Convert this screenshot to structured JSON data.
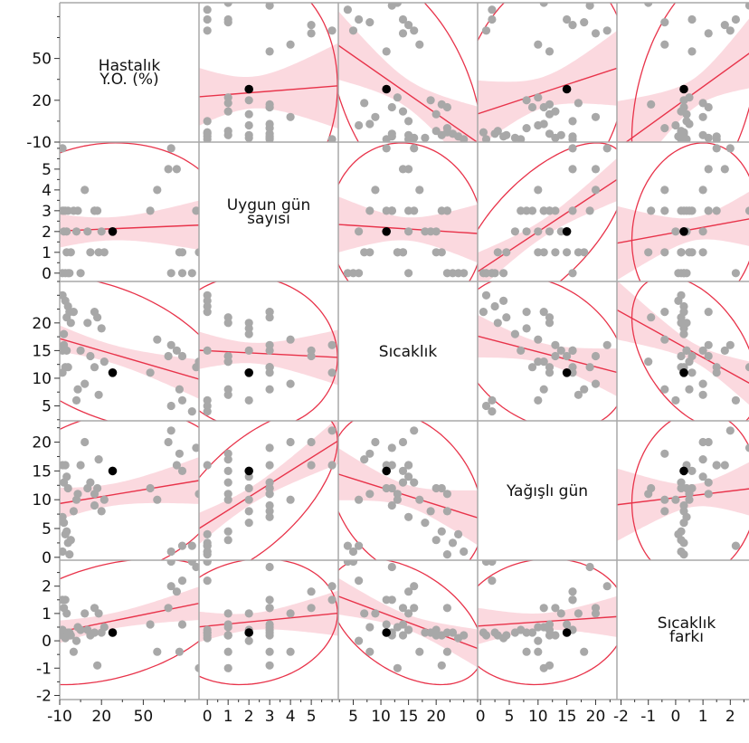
{
  "chart_data": {
    "type": "scatter_matrix",
    "variables": [
      {
        "key": "hastalik",
        "label_lines": [
          "Hastalık",
          "Y.O. (%)"
        ],
        "range": [
          -10,
          90
        ],
        "ticks": [
          -10,
          20,
          50
        ]
      },
      {
        "key": "uygun_gun",
        "label_lines": [
          "Uygun gün",
          "sayısı"
        ],
        "range": [
          -0.4,
          6.3
        ],
        "ticks": [
          0,
          1,
          2,
          3,
          4,
          5
        ]
      },
      {
        "key": "sicaklik",
        "label_lines": [
          "Sıcaklık"
        ],
        "range": [
          2.3,
          27.5
        ],
        "ticks": [
          5,
          10,
          15,
          20
        ]
      },
      {
        "key": "yagisli_gun",
        "label_lines": [
          "Yağışlı gün"
        ],
        "range": [
          -0.5,
          23.7
        ],
        "ticks": [
          0,
          5,
          10,
          15,
          20
        ]
      },
      {
        "key": "sicaklik_farki",
        "label_lines": [
          "Sıcaklık",
          "farkı"
        ],
        "range": [
          -2.15,
          2.95
        ],
        "ticks": [
          -2,
          -1,
          0,
          1,
          2
        ]
      }
    ],
    "observations": [
      [
        -8,
        0,
        25,
        1.0,
        0.2
      ],
      [
        -6,
        0,
        24,
        4.0,
        0.1
      ],
      [
        -4,
        0,
        23,
        2.5,
        0.3
      ],
      [
        -3,
        0,
        22,
        0.5,
        0.3
      ],
      [
        -5,
        1,
        21,
        4.5,
        0.2
      ],
      [
        -2,
        1,
        20,
        3.0,
        0.2
      ],
      [
        -7,
        2,
        18,
        6.0,
        0.3
      ],
      [
        -8,
        3,
        15,
        7.0,
        0.4
      ],
      [
        -4,
        3,
        12,
        12.0,
        0.2
      ],
      [
        0,
        3,
        22,
        8.0,
        -0.4
      ],
      [
        2,
        2,
        6,
        10.0,
        0.0
      ],
      [
        3,
        3,
        8,
        11.0,
        0.5
      ],
      [
        -8,
        6,
        11,
        16.0,
        1.5
      ],
      [
        -7,
        3,
        16,
        13.0,
        1.2
      ],
      [
        -6,
        3,
        12,
        16.0,
        1.5
      ],
      [
        -5,
        2,
        15,
        14.0,
        1.0
      ],
      [
        8,
        4,
        9,
        20.0,
        1.0
      ],
      [
        15,
        3,
        22,
        11.0,
        1.2
      ],
      [
        17,
        3,
        21,
        12.0,
        -0.9
      ],
      [
        15,
        3,
        12,
        9.0,
        0.3
      ],
      [
        10,
        2,
        20,
        12.0,
        0.4
      ],
      [
        12,
        1,
        14,
        13.0,
        0.2
      ],
      [
        20,
        2,
        19,
        8.0,
        0.3
      ],
      [
        22,
        1,
        13,
        10.0,
        0.5
      ],
      [
        18,
        1,
        7,
        17.0,
        1.0
      ],
      [
        5,
        0,
        15,
        16.0,
        0.4
      ],
      [
        28,
        2,
        11,
        15.0,
        0.3
      ],
      [
        55,
        3,
        11,
        12.0,
        0.6
      ],
      [
        60,
        4,
        17,
        10.0,
        -0.4
      ],
      [
        68,
        5,
        14,
        20.0,
        1.2
      ],
      [
        70,
        6,
        16,
        22.0,
        2.0
      ],
      [
        74,
        5,
        15,
        16.0,
        1.8
      ],
      [
        78,
        1,
        14,
        15.0,
        0.6
      ],
      [
        76,
        1,
        8,
        18.0,
        -0.4
      ],
      [
        85,
        0,
        4,
        2.0,
        2.9
      ],
      [
        88,
        3,
        12,
        19.0,
        2.7
      ],
      [
        90,
        1,
        13,
        11.0,
        -1.0
      ],
      [
        70,
        0,
        5,
        1.0,
        2.9
      ],
      [
        78,
        0,
        6,
        2.0,
        2.2
      ]
    ],
    "highlight_index": 26,
    "fit": "linear regression with 95% confidence band and 95% density ellipse",
    "grid": false,
    "legend": "none"
  }
}
